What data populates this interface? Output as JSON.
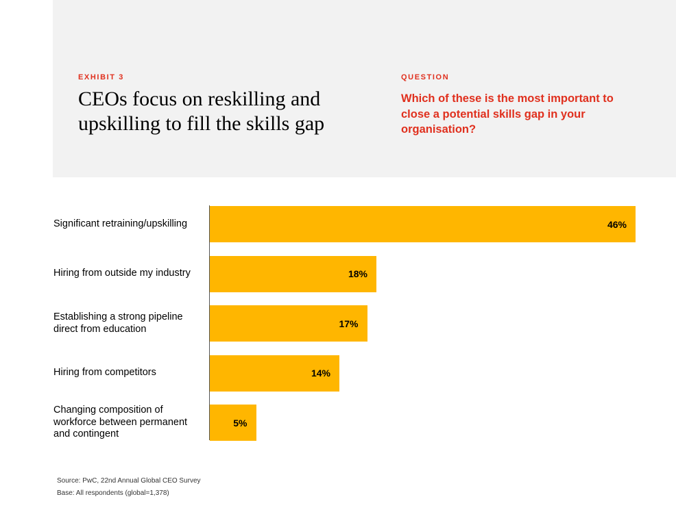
{
  "header": {
    "exhibit_label": "EXHIBIT 3",
    "title": "CEOs focus on reskilling and upskilling to fill the skills gap",
    "question_label": "QUESTION",
    "question": "Which of these is the most important to close a potential skills gap in your organisation?"
  },
  "colors": {
    "accent": "#e0301e",
    "bar": "#ffb600",
    "panel": "#f2f2f2"
  },
  "chart_data": {
    "type": "bar",
    "orientation": "horizontal",
    "categories": [
      "Significant retraining/upskilling",
      "Hiring from outside my industry",
      "Establishing a strong pipeline direct from education",
      "Hiring from competitors",
      "Changing composition of workforce between permanent and contingent"
    ],
    "values": [
      46,
      18,
      17,
      14,
      5
    ],
    "value_labels": [
      "46%",
      "18%",
      "17%",
      "14%",
      "5%"
    ],
    "unit": "%",
    "xlim": [
      0,
      46
    ],
    "grid": false,
    "legend": "none"
  },
  "footer": {
    "source": "Source: PwC, 22nd Annual Global CEO Survey",
    "base": "Base: All respondents (global=1,378)"
  }
}
